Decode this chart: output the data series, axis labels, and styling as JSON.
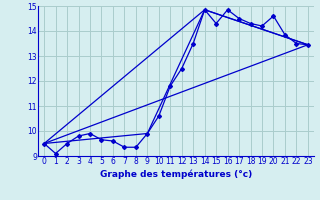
{
  "xlabel": "Graphe des températures (°c)",
  "background_color": "#d6eef0",
  "line_color": "#0000cc",
  "grid_color": "#aacccc",
  "xlim": [
    -0.5,
    23.5
  ],
  "ylim": [
    9,
    15
  ],
  "xticks": [
    0,
    1,
    2,
    3,
    4,
    5,
    6,
    7,
    8,
    9,
    10,
    11,
    12,
    13,
    14,
    15,
    16,
    17,
    18,
    19,
    20,
    21,
    22,
    23
  ],
  "yticks": [
    9,
    10,
    11,
    12,
    13,
    14,
    15
  ],
  "main_x": [
    0,
    1,
    2,
    3,
    4,
    5,
    6,
    7,
    8,
    9,
    10,
    11,
    12,
    13,
    14,
    15,
    16,
    17,
    18,
    19,
    20,
    21,
    22,
    23
  ],
  "main_y": [
    9.5,
    9.1,
    9.5,
    9.8,
    9.9,
    9.65,
    9.6,
    9.35,
    9.35,
    9.9,
    10.6,
    11.8,
    12.5,
    13.5,
    14.85,
    14.3,
    14.85,
    14.5,
    14.3,
    14.2,
    14.6,
    13.85,
    13.5,
    13.45
  ],
  "trend1_x": [
    0,
    23
  ],
  "trend1_y": [
    9.5,
    13.45
  ],
  "trend2_x": [
    0,
    9,
    14,
    23
  ],
  "trend2_y": [
    9.5,
    9.9,
    14.85,
    13.45
  ],
  "trend3_x": [
    0,
    14,
    23
  ],
  "trend3_y": [
    9.5,
    14.85,
    13.45
  ]
}
